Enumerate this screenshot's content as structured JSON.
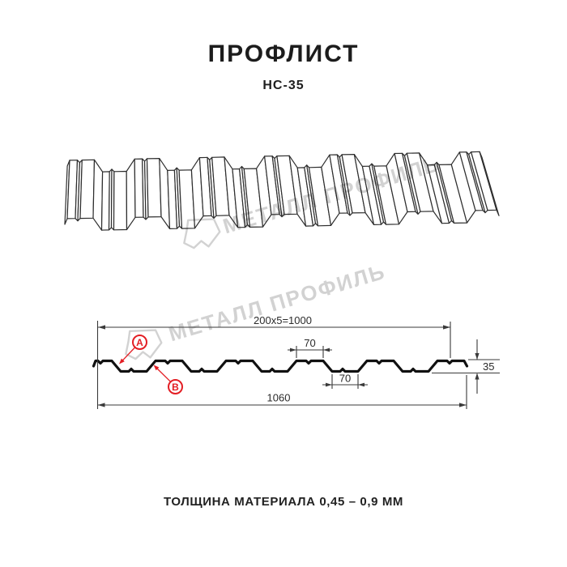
{
  "header": {
    "title": "ПРОФЛИСТ",
    "subtitle": "НС-35"
  },
  "watermark": {
    "brand": "МЕТАЛЛ ПРОФИЛЬ"
  },
  "cross_section": {
    "dim_module_width": "200x5=1000",
    "dim_rib_top_width": "70",
    "dim_rib_bottom_width": "70",
    "dim_overall_width": "1060",
    "dim_profile_height": "35",
    "marker_a": "А",
    "marker_b": "В"
  },
  "footer": {
    "material_thickness": "ТОЛЩИНА МАТЕРИАЛА 0,45 – 0,9 ММ"
  },
  "colors": {
    "accent_red": "#E31E24",
    "line_dark": "#2E2E2E",
    "watermark_gray": "#D2D2D2"
  }
}
